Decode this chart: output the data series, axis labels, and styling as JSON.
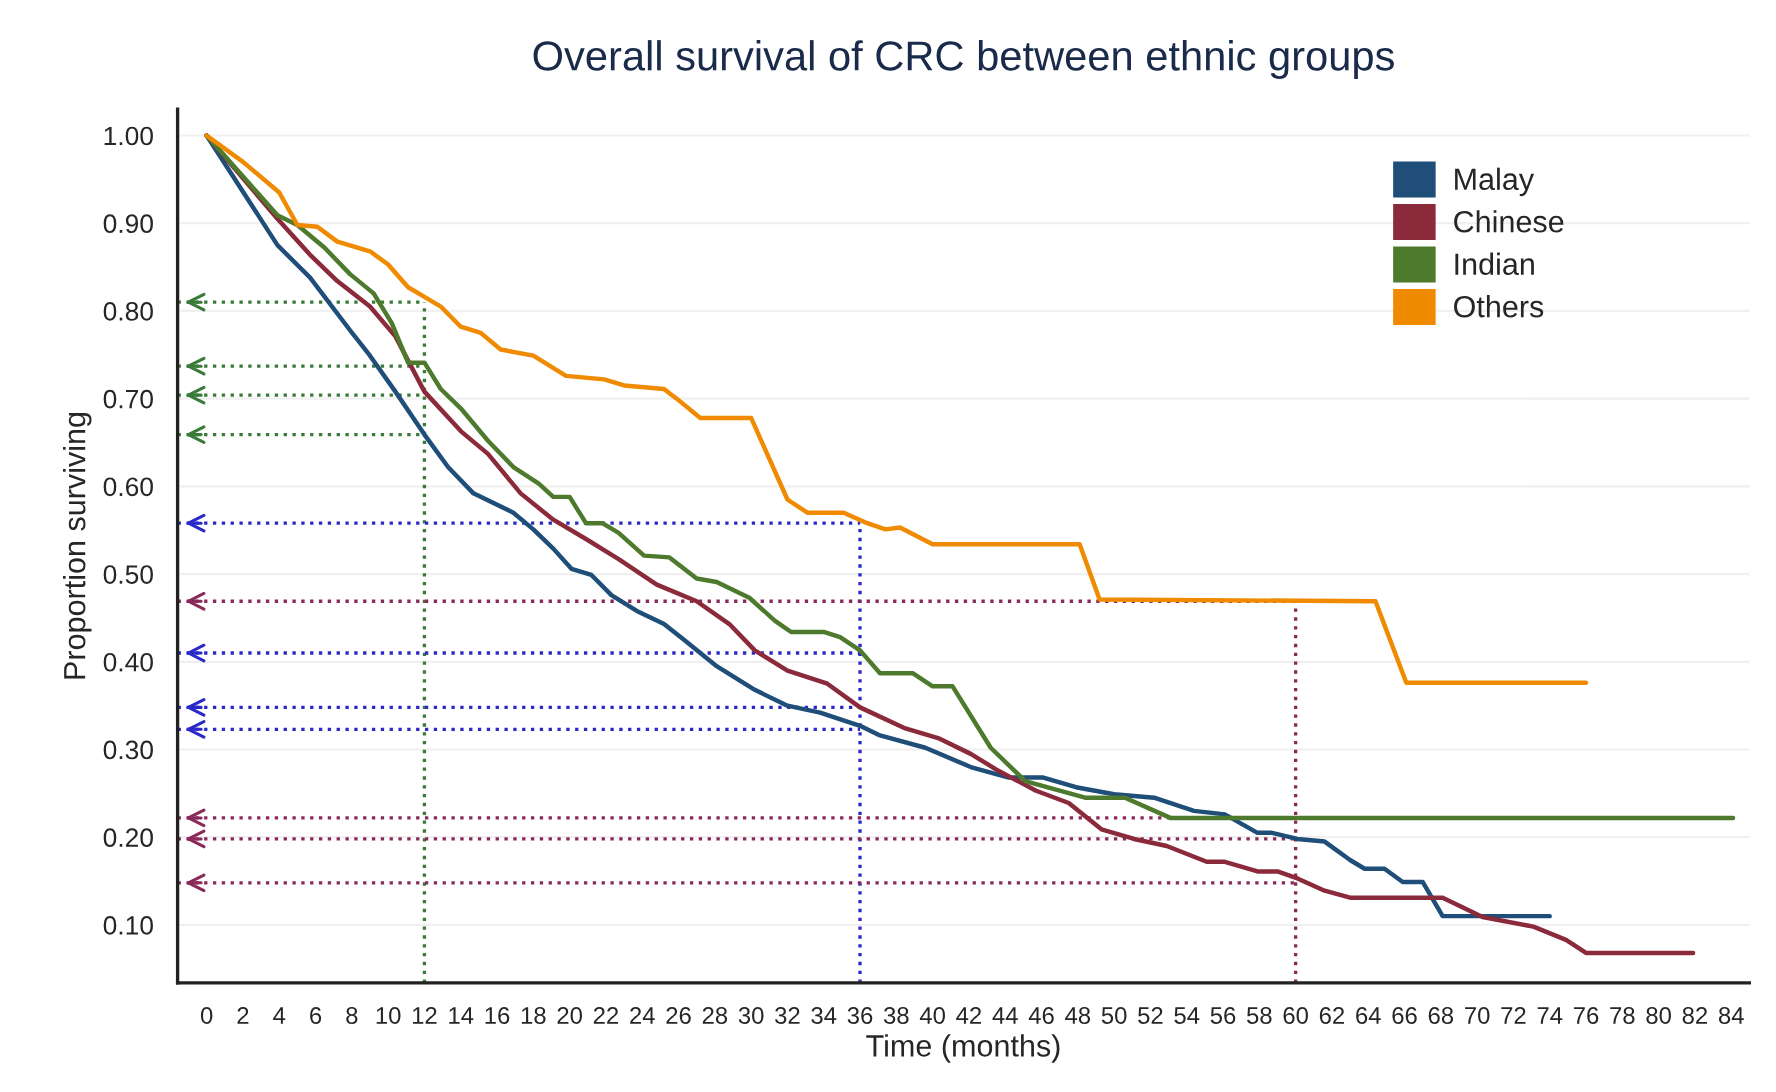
{
  "chart_data": {
    "type": "line",
    "title": "Overall survival of CRC between ethnic groups",
    "xlabel": "Time (months)",
    "ylabel": "Proportion surviving",
    "xlim": [
      -1.6,
      85
    ],
    "ylim": [
      0.034,
      1.03
    ],
    "xticks": [
      0,
      2,
      4,
      6,
      8,
      10,
      12,
      14,
      16,
      18,
      20,
      22,
      24,
      26,
      28,
      30,
      32,
      34,
      36,
      38,
      40,
      42,
      44,
      46,
      48,
      50,
      52,
      54,
      56,
      58,
      60,
      62,
      64,
      66,
      68,
      70,
      72,
      74,
      76,
      78,
      80,
      82,
      84
    ],
    "yticks": [
      {
        "value": 0.1,
        "label": "0.10"
      },
      {
        "value": 0.2,
        "label": "0.20"
      },
      {
        "value": 0.3,
        "label": "0.30"
      },
      {
        "value": 0.4,
        "label": "0.40"
      },
      {
        "value": 0.5,
        "label": "0.50"
      },
      {
        "value": 0.6,
        "label": "0.60"
      },
      {
        "value": 0.7,
        "label": "0.70"
      },
      {
        "value": 0.8,
        "label": "0.80"
      },
      {
        "value": 0.9,
        "label": "0.90"
      },
      {
        "value": 1.0,
        "label": "1.00"
      }
    ],
    "grid": "y",
    "legend": "top right",
    "line_style": "solid",
    "series": [
      {
        "name": "Malay",
        "color": "#1f4e79",
        "x": [
          0,
          2.5,
          3.9,
          5.7,
          7.9,
          9,
          10.4,
          12,
          13.3,
          14.7,
          16.9,
          18,
          19.1,
          20.1,
          21.2,
          22.3,
          23.7,
          24.8,
          25.2,
          26.3,
          28.1,
          30.2,
          32,
          33.8,
          36,
          37.1,
          39.6,
          42.1,
          44.2,
          46.1,
          47.9,
          50,
          52.2,
          54.4,
          56.1,
          57.9,
          58.7,
          60.1,
          61.6,
          63,
          63.8,
          64.9,
          65.9,
          67,
          68.1,
          74
        ],
        "values": [
          1.0,
          0.92,
          0.875,
          0.838,
          0.778,
          0.749,
          0.708,
          0.659,
          0.622,
          0.592,
          0.57,
          0.551,
          0.529,
          0.506,
          0.499,
          0.476,
          0.458,
          0.447,
          0.443,
          0.425,
          0.395,
          0.368,
          0.35,
          0.342,
          0.327,
          0.316,
          0.302,
          0.28,
          0.268,
          0.268,
          0.257,
          0.249,
          0.245,
          0.23,
          0.226,
          0.205,
          0.205,
          0.198,
          0.195,
          0.174,
          0.164,
          0.164,
          0.149,
          0.149,
          0.11,
          0.11
        ]
      },
      {
        "name": "Chinese",
        "color": "#8b2a3a",
        "x": [
          0,
          3.9,
          5.7,
          7.2,
          9,
          10.4,
          12,
          14,
          15.5,
          17.3,
          19.1,
          20.9,
          22.7,
          24.8,
          27,
          28.8,
          30.2,
          32,
          34.2,
          36,
          38.5,
          40.3,
          42.1,
          43.6,
          45.7,
          47.5,
          49.3,
          51.1,
          52.9,
          55.1,
          56.1,
          57.9,
          59,
          60.1,
          61.6,
          63,
          68.1,
          70.3,
          73.1,
          74.9,
          76,
          81.9
        ],
        "values": [
          1.0,
          0.905,
          0.864,
          0.834,
          0.805,
          0.771,
          0.708,
          0.663,
          0.637,
          0.592,
          0.562,
          0.54,
          0.517,
          0.488,
          0.469,
          0.443,
          0.413,
          0.39,
          0.375,
          0.348,
          0.324,
          0.313,
          0.295,
          0.276,
          0.253,
          0.239,
          0.209,
          0.198,
          0.19,
          0.172,
          0.172,
          0.161,
          0.161,
          0.153,
          0.139,
          0.131,
          0.131,
          0.109,
          0.098,
          0.083,
          0.068,
          0.068
        ]
      },
      {
        "name": "Indian",
        "color": "#4e7a2e",
        "x": [
          0,
          3.9,
          5,
          6.5,
          7.9,
          9.2,
          10.2,
          11.1,
          12,
          12.9,
          14,
          15.5,
          16.9,
          18.3,
          19.1,
          20,
          20.9,
          21.8,
          22.7,
          24.1,
          25.5,
          27,
          28.1,
          29.9,
          31.3,
          32.2,
          34,
          34.9,
          36,
          37.1,
          38.9,
          40,
          41.1,
          43.2,
          45.1,
          48.4,
          50.6,
          53.1,
          84.1
        ],
        "values": [
          1.0,
          0.909,
          0.898,
          0.872,
          0.842,
          0.82,
          0.786,
          0.741,
          0.741,
          0.711,
          0.689,
          0.652,
          0.622,
          0.603,
          0.588,
          0.588,
          0.558,
          0.558,
          0.547,
          0.521,
          0.519,
          0.495,
          0.491,
          0.473,
          0.447,
          0.434,
          0.434,
          0.428,
          0.413,
          0.387,
          0.387,
          0.372,
          0.372,
          0.302,
          0.264,
          0.245,
          0.245,
          0.222,
          0.222
        ]
      },
      {
        "name": "Others",
        "color": "#f08a00",
        "x": [
          0,
          2,
          4,
          5,
          6.1,
          7.2,
          9,
          10,
          11.1,
          12,
          12.9,
          14,
          15.1,
          16.2,
          18,
          19.8,
          21.9,
          23,
          25.2,
          25.9,
          27.2,
          30,
          32,
          33.1,
          35.1,
          36.4,
          37.4,
          38.2,
          40,
          48.1,
          49.2,
          64.4,
          66.1,
          76
        ],
        "values": [
          1.0,
          0.97,
          0.935,
          0.898,
          0.896,
          0.879,
          0.868,
          0.853,
          0.827,
          0.816,
          0.805,
          0.782,
          0.775,
          0.756,
          0.749,
          0.726,
          0.722,
          0.715,
          0.711,
          0.7,
          0.678,
          0.678,
          0.585,
          0.57,
          0.57,
          0.558,
          0.551,
          0.553,
          0.534,
          0.534,
          0.471,
          0.469,
          0.376,
          0.376
        ]
      }
    ],
    "ref_lines": [
      {
        "axis": "x",
        "value": 12,
        "color": "#3a7a3a",
        "line_style": "dotted"
      },
      {
        "axis": "x",
        "value": 36,
        "color": "#2a2ac8",
        "line_style": "dotted"
      },
      {
        "axis": "x",
        "value": 60,
        "color": "#8a2a5a",
        "line_style": "dotted"
      },
      {
        "axis": "y",
        "value": 0.81,
        "color": "#3a7a3a",
        "line_style": "dotted"
      },
      {
        "axis": "y",
        "value": 0.737,
        "color": "#3a7a3a",
        "line_style": "dotted"
      },
      {
        "axis": "y",
        "value": 0.704,
        "color": "#3a7a3a",
        "line_style": "dotted"
      },
      {
        "axis": "y",
        "value": 0.659,
        "color": "#3a7a3a",
        "line_style": "dotted"
      },
      {
        "axis": "y",
        "value": 0.558,
        "color": "#2a2ac8",
        "line_style": "dotted"
      },
      {
        "axis": "y",
        "value": 0.41,
        "color": "#2a2ac8",
        "line_style": "dotted"
      },
      {
        "axis": "y",
        "value": 0.348,
        "color": "#2a2ac8",
        "line_style": "dotted"
      },
      {
        "axis": "y",
        "value": 0.323,
        "color": "#2a2ac8",
        "line_style": "dotted"
      },
      {
        "axis": "y",
        "value": 0.469,
        "color": "#8a2a5a",
        "line_style": "dotted"
      },
      {
        "axis": "y",
        "value": 0.222,
        "color": "#8a2a5a",
        "line_style": "dotted"
      },
      {
        "axis": "y",
        "value": 0.198,
        "color": "#8a2a5a",
        "line_style": "dotted"
      },
      {
        "axis": "y",
        "value": 0.148,
        "color": "#8a2a5a",
        "line_style": "dotted"
      }
    ]
  }
}
